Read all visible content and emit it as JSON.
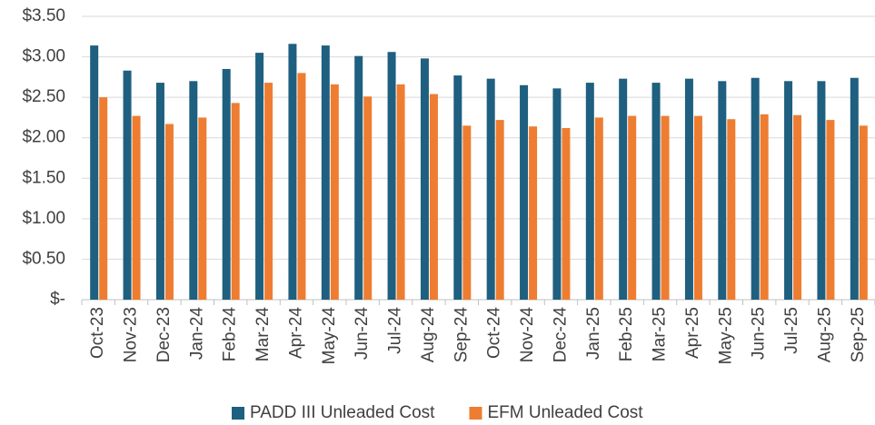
{
  "chart_data": {
    "type": "bar",
    "categories": [
      "Oct-23",
      "Nov-23",
      "Dec-23",
      "Jan-24",
      "Feb-24",
      "Mar-24",
      "Apr-24",
      "May-24",
      "Jun-24",
      "Jul-24",
      "Aug-24",
      "Sep-24",
      "Oct-24",
      "Nov-24",
      "Dec-24",
      "Jan-25",
      "Feb-25",
      "Mar-25",
      "Apr-25",
      "May-25",
      "Jun-25",
      "Jul-25",
      "Aug-25",
      "Sep-25"
    ],
    "series": [
      {
        "name": "PADD III Unleaded Cost",
        "color": "#1f5f7f",
        "values": [
          3.14,
          2.83,
          2.68,
          2.7,
          2.85,
          3.05,
          3.16,
          3.14,
          3.01,
          3.06,
          2.98,
          2.77,
          2.73,
          2.65,
          2.61,
          2.68,
          2.73,
          2.68,
          2.73,
          2.7,
          2.74,
          2.7,
          2.7,
          2.74
        ]
      },
      {
        "name": "EFM Unleaded Cost",
        "color": "#ee7d31",
        "values": [
          2.5,
          2.27,
          2.17,
          2.25,
          2.43,
          2.68,
          2.8,
          2.66,
          2.51,
          2.66,
          2.54,
          2.15,
          2.22,
          2.14,
          2.12,
          2.25,
          2.27,
          2.27,
          2.27,
          2.23,
          2.29,
          2.28,
          2.22,
          2.15
        ]
      }
    ],
    "ylim": [
      0,
      3.5
    ],
    "yticks": [
      {
        "value": 0,
        "label": "$-"
      },
      {
        "value": 0.5,
        "label": "$0.50"
      },
      {
        "value": 1,
        "label": "$1.00"
      },
      {
        "value": 1.5,
        "label": "$1.50"
      },
      {
        "value": 2,
        "label": "$2.00"
      },
      {
        "value": 2.5,
        "label": "$2.50"
      },
      {
        "value": 3,
        "label": "$3.00"
      },
      {
        "value": 3.5,
        "label": "$3.50"
      }
    ],
    "grid": true,
    "legend": "bottom"
  }
}
